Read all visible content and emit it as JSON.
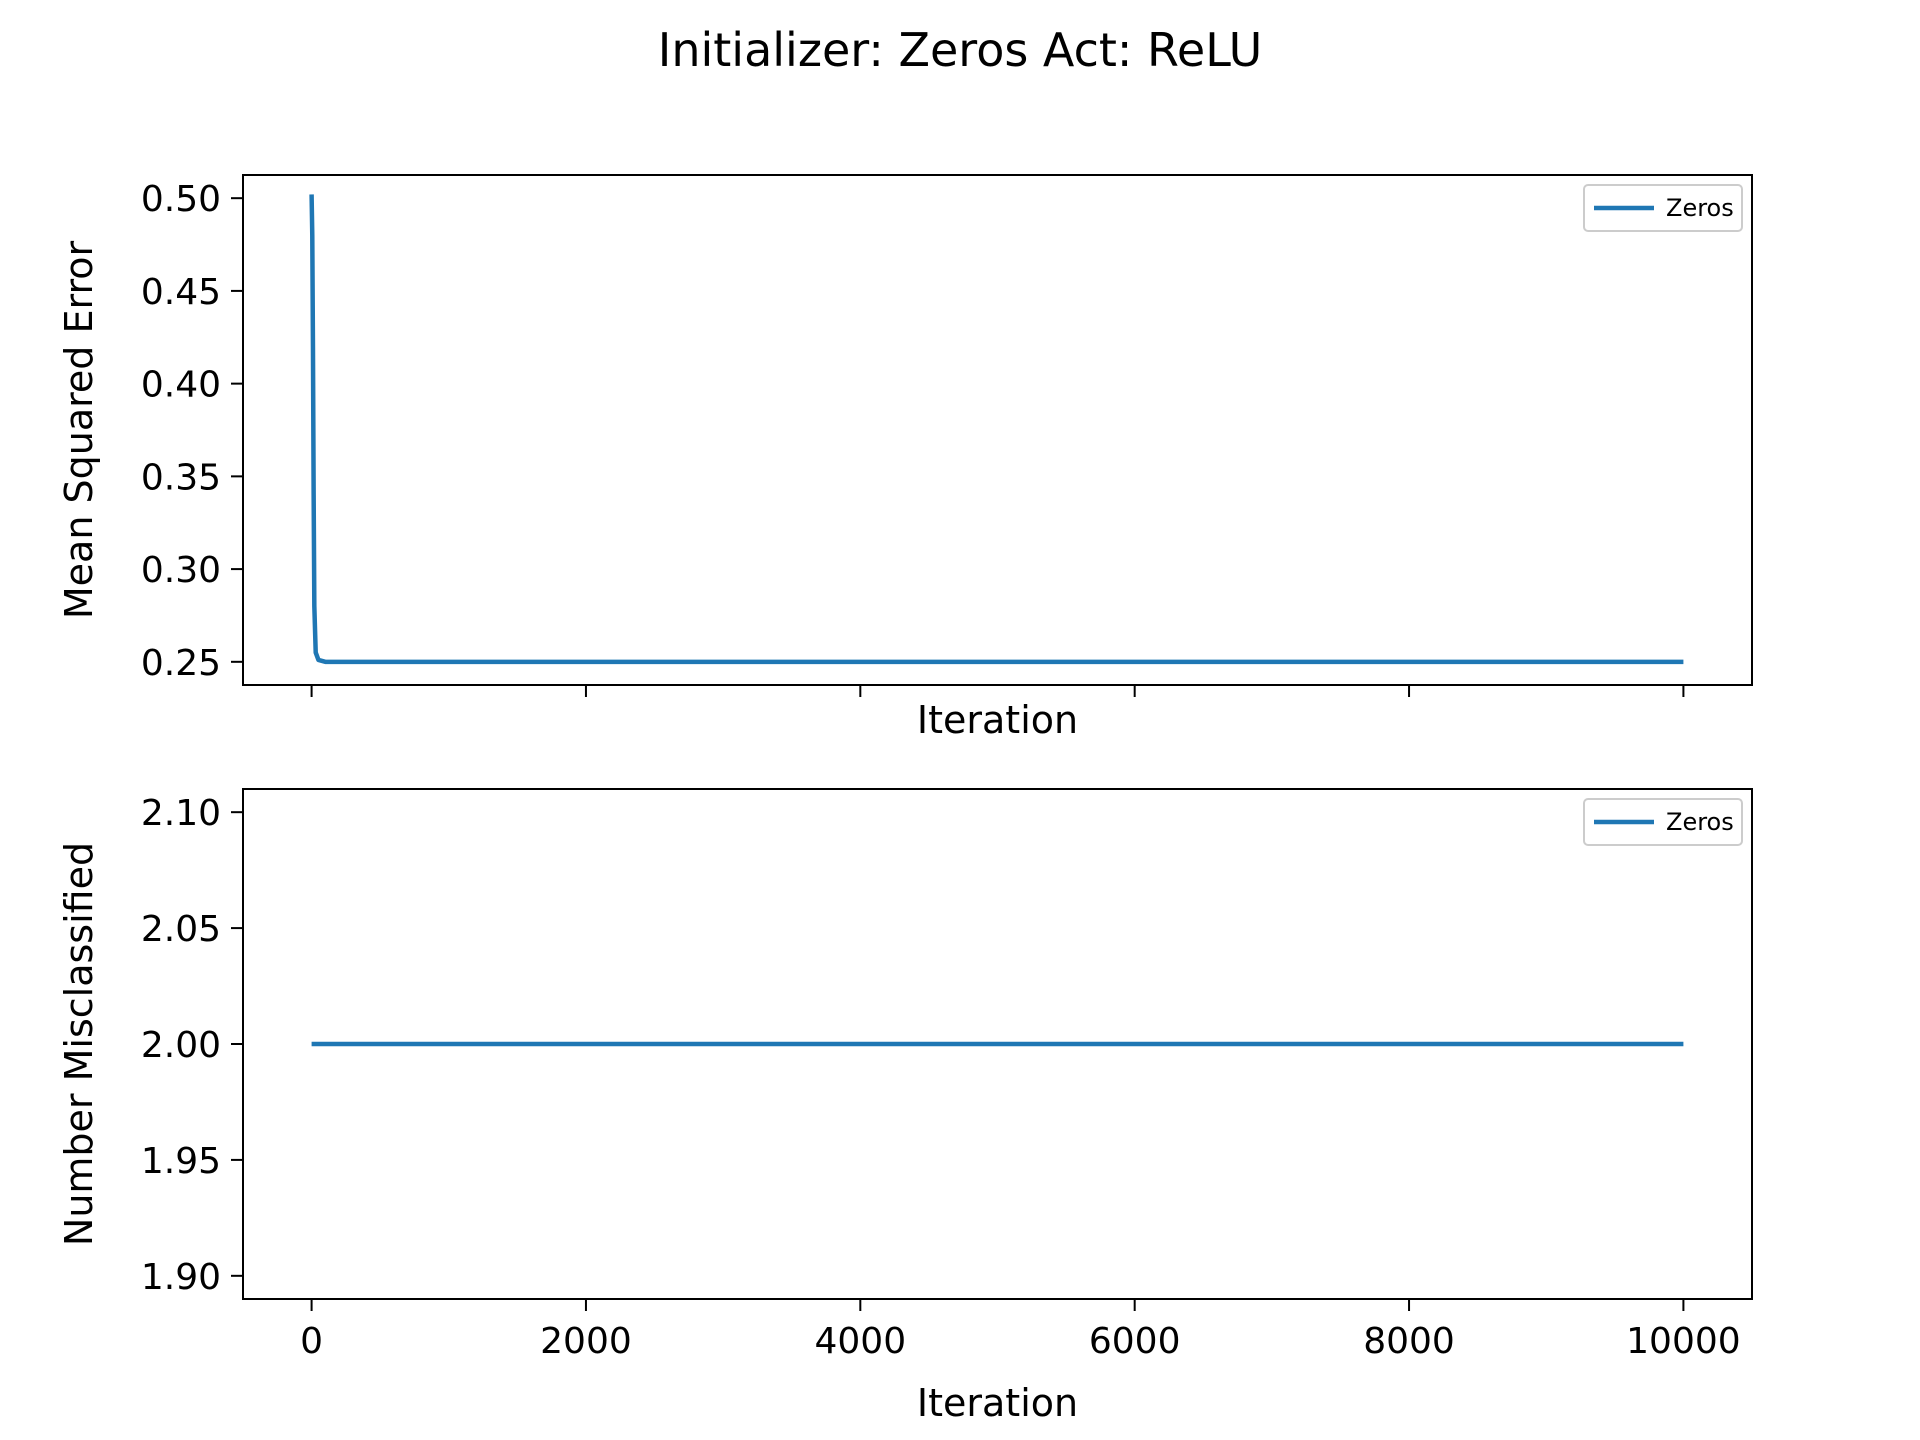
{
  "figure": {
    "title": "Initializer: Zeros Act: ReLU"
  },
  "colors": {
    "series": "#1f77b4",
    "axes": "#000000",
    "legend_border": "#cccccc"
  },
  "chart_data": [
    {
      "type": "line",
      "xlabel": "Iteration",
      "ylabel": "Mean Squared Error",
      "xlim": [
        -500,
        10500
      ],
      "ylim": [
        0.2375,
        0.5125
      ],
      "xticks": [
        0,
        2000,
        4000,
        6000,
        8000,
        10000
      ],
      "show_xtick_labels": false,
      "yticks": [
        0.25,
        0.3,
        0.35,
        0.4,
        0.45,
        0.5
      ],
      "ytick_labels": [
        "0.25",
        "0.30",
        "0.35",
        "0.40",
        "0.45",
        "0.50"
      ],
      "grid": false,
      "legend": "upper-right",
      "series": [
        {
          "name": "Zeros",
          "x": [
            0,
            5,
            10,
            15,
            20,
            30,
            50,
            100,
            500,
            1000,
            2000,
            4000,
            6000,
            8000,
            10000
          ],
          "y": [
            0.502,
            0.48,
            0.42,
            0.34,
            0.28,
            0.255,
            0.251,
            0.25,
            0.25,
            0.25,
            0.25,
            0.25,
            0.25,
            0.25,
            0.25
          ]
        }
      ]
    },
    {
      "type": "line",
      "xlabel": "Iteration",
      "ylabel": "Number Misclassified",
      "xlim": [
        -500,
        10500
      ],
      "ylim": [
        1.89,
        2.11
      ],
      "xticks": [
        0,
        2000,
        4000,
        6000,
        8000,
        10000
      ],
      "xtick_labels": [
        "0",
        "2000",
        "4000",
        "6000",
        "8000",
        "10000"
      ],
      "show_xtick_labels": true,
      "yticks": [
        1.9,
        1.95,
        2.0,
        2.05,
        2.1
      ],
      "ytick_labels": [
        "1.90",
        "1.95",
        "2.00",
        "2.05",
        "2.10"
      ],
      "grid": false,
      "legend": "upper-right",
      "series": [
        {
          "name": "Zeros",
          "x": [
            0,
            10000
          ],
          "y": [
            2.0,
            2.0
          ]
        }
      ]
    }
  ]
}
